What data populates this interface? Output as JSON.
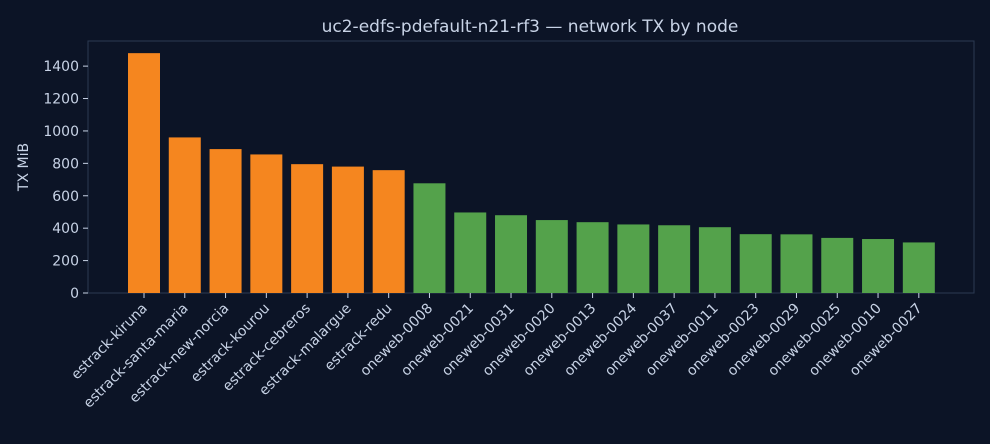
{
  "chart_data": {
    "type": "bar",
    "title": "uc2-edfs-pdefault-n21-rf3 — network TX by node",
    "xlabel": "",
    "ylabel": "TX MiB",
    "ylim": [
      0,
      1555
    ],
    "yticks": [
      0,
      200,
      400,
      600,
      800,
      1000,
      1200,
      1400
    ],
    "grid": false,
    "categories": [
      "estrack-kiruna",
      "estrack-santa-maria",
      "estrack-new-norcia",
      "estrack-kourou",
      "estrack-cebreros",
      "estrack-malargue",
      "estrack-redu",
      "oneweb-0008",
      "oneweb-0021",
      "oneweb-0031",
      "oneweb-0020",
      "oneweb-0013",
      "oneweb-0024",
      "oneweb-0037",
      "oneweb-0011",
      "oneweb-0023",
      "oneweb-0029",
      "oneweb-0025",
      "oneweb-0010",
      "oneweb-0027"
    ],
    "values": [
      1480,
      960,
      888,
      855,
      795,
      780,
      758,
      677,
      497,
      480,
      450,
      437,
      423,
      418,
      406,
      363,
      362,
      340,
      333,
      312
    ],
    "bar_colors": [
      "#f5861f",
      "#f5861f",
      "#f5861f",
      "#f5861f",
      "#f5861f",
      "#f5861f",
      "#f5861f",
      "#54a24b",
      "#54a24b",
      "#54a24b",
      "#54a24b",
      "#54a24b",
      "#54a24b",
      "#54a24b",
      "#54a24b",
      "#54a24b",
      "#54a24b",
      "#54a24b",
      "#54a24b",
      "#54a24b"
    ]
  },
  "colors": {
    "background": "#0c1426",
    "plot_border": "#2b3a52",
    "text": "#c8d3e6",
    "title": "#c8d3e6"
  }
}
